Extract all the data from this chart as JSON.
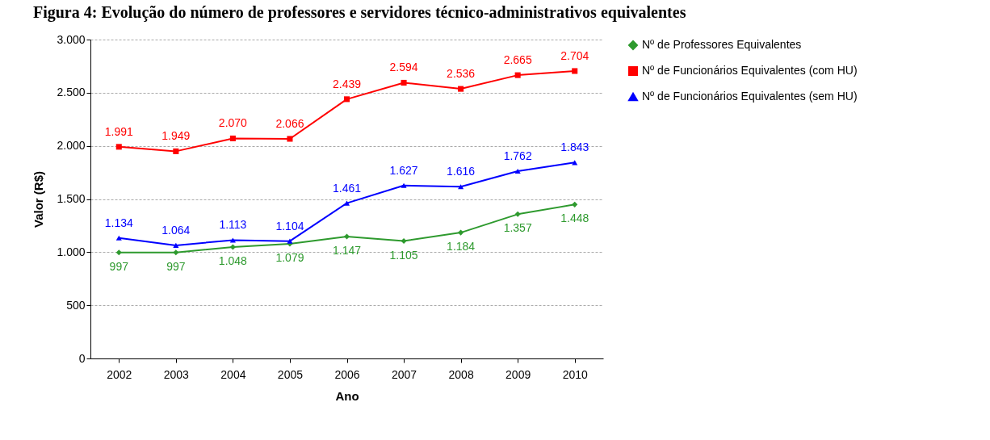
{
  "chart_data": {
    "type": "line",
    "title": "Figura 4: Evolução do número de professores e servidores técnico-administrativos equivalentes",
    "xlabel": "Ano",
    "ylabel": "Valor (R$)",
    "categories": [
      "2002",
      "2003",
      "2004",
      "2005",
      "2006",
      "2007",
      "2008",
      "2009",
      "2010"
    ],
    "series": [
      {
        "name": "Nº de Professores Equivalentes",
        "color": "#2e9a2e",
        "marker": "diamond",
        "values": [
          997,
          997,
          1048,
          1079,
          1147,
          1105,
          1184,
          1357,
          1448
        ],
        "value_labels": [
          "997",
          "997",
          "1.048",
          "1.079",
          "1.147",
          "1.105",
          "1.184",
          "1.357",
          "1.448"
        ]
      },
      {
        "name": "Nº de Funcionários Equivalentes (com HU)",
        "color": "#ff0000",
        "marker": "square",
        "values": [
          1991,
          1949,
          2070,
          2066,
          2439,
          2594,
          2536,
          2665,
          2704
        ],
        "value_labels": [
          "1.991",
          "1.949",
          "2.070",
          "2.066",
          "2.439",
          "2.594",
          "2.536",
          "2.665",
          "2.704"
        ]
      },
      {
        "name": "Nº de Funcionários Equivalentes (sem HU)",
        "color": "#0000ff",
        "marker": "triangle",
        "values": [
          1134,
          1064,
          1113,
          1104,
          1461,
          1627,
          1616,
          1762,
          1843
        ],
        "value_labels": [
          "1.134",
          "1.064",
          "1.113",
          "1.104",
          "1.461",
          "1.627",
          "1.616",
          "1.762",
          "1.843"
        ]
      }
    ],
    "ylim": [
      0,
      3000
    ],
    "yticks": [
      {
        "value": 0,
        "label": "0"
      },
      {
        "value": 500,
        "label": "500"
      },
      {
        "value": 1000,
        "label": "1.000"
      },
      {
        "value": 1500,
        "label": "1.500"
      },
      {
        "value": 2000,
        "label": "2.000"
      },
      {
        "value": 2500,
        "label": "2.500"
      },
      {
        "value": 3000,
        "label": "3.000"
      }
    ],
    "grid": "y",
    "legend": "right",
    "line_style": "solid"
  }
}
